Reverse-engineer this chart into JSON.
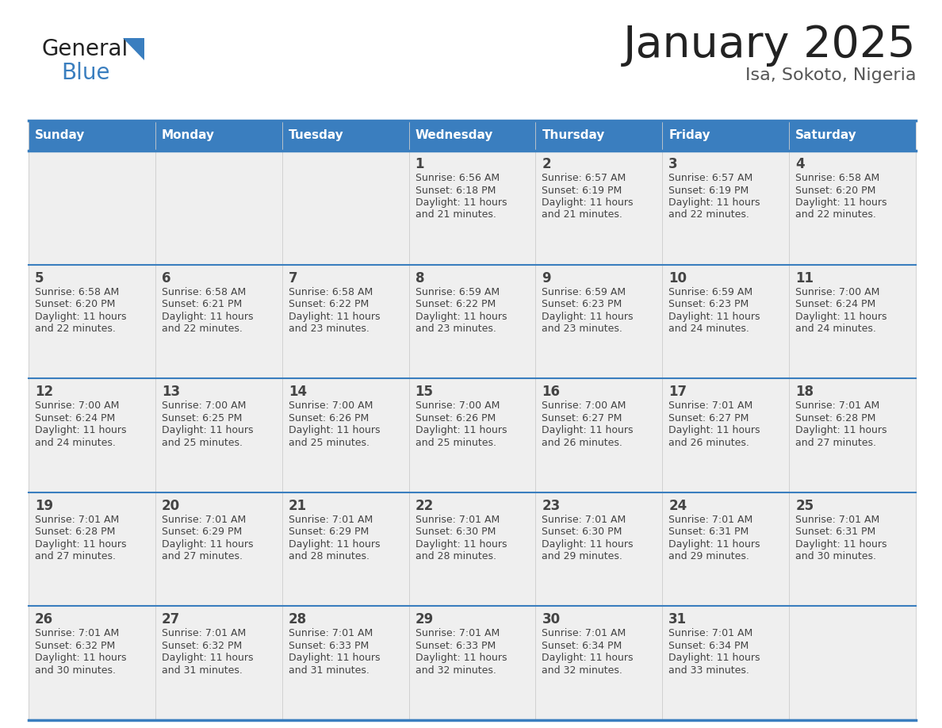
{
  "title": "January 2025",
  "subtitle": "Isa, Sokoto, Nigeria",
  "days_of_week": [
    "Sunday",
    "Monday",
    "Tuesday",
    "Wednesday",
    "Thursday",
    "Friday",
    "Saturday"
  ],
  "header_bg": "#3a7ebf",
  "header_text": "#ffffff",
  "cell_bg_odd": "#efefef",
  "cell_bg_even": "#ffffff",
  "border_color": "#3a7ebf",
  "divider_color": "#3a7ebf",
  "text_color": "#444444",
  "day_num_color": "#444444",
  "logo_general_color": "#222222",
  "logo_blue_color": "#3a7ebf",
  "logo_tri_color": "#3a7ebf",
  "title_color": "#222222",
  "subtitle_color": "#555555",
  "calendar_data": [
    [
      {
        "day": null,
        "info": null
      },
      {
        "day": null,
        "info": null
      },
      {
        "day": null,
        "info": null
      },
      {
        "day": 1,
        "info": {
          "sunrise": "6:56 AM",
          "sunset": "6:18 PM",
          "daylight_h": "11 hours",
          "daylight_m": "and 21 minutes."
        }
      },
      {
        "day": 2,
        "info": {
          "sunrise": "6:57 AM",
          "sunset": "6:19 PM",
          "daylight_h": "11 hours",
          "daylight_m": "and 21 minutes."
        }
      },
      {
        "day": 3,
        "info": {
          "sunrise": "6:57 AM",
          "sunset": "6:19 PM",
          "daylight_h": "11 hours",
          "daylight_m": "and 22 minutes."
        }
      },
      {
        "day": 4,
        "info": {
          "sunrise": "6:58 AM",
          "sunset": "6:20 PM",
          "daylight_h": "11 hours",
          "daylight_m": "and 22 minutes."
        }
      }
    ],
    [
      {
        "day": 5,
        "info": {
          "sunrise": "6:58 AM",
          "sunset": "6:20 PM",
          "daylight_h": "11 hours",
          "daylight_m": "and 22 minutes."
        }
      },
      {
        "day": 6,
        "info": {
          "sunrise": "6:58 AM",
          "sunset": "6:21 PM",
          "daylight_h": "11 hours",
          "daylight_m": "and 22 minutes."
        }
      },
      {
        "day": 7,
        "info": {
          "sunrise": "6:58 AM",
          "sunset": "6:22 PM",
          "daylight_h": "11 hours",
          "daylight_m": "and 23 minutes."
        }
      },
      {
        "day": 8,
        "info": {
          "sunrise": "6:59 AM",
          "sunset": "6:22 PM",
          "daylight_h": "11 hours",
          "daylight_m": "and 23 minutes."
        }
      },
      {
        "day": 9,
        "info": {
          "sunrise": "6:59 AM",
          "sunset": "6:23 PM",
          "daylight_h": "11 hours",
          "daylight_m": "and 23 minutes."
        }
      },
      {
        "day": 10,
        "info": {
          "sunrise": "6:59 AM",
          "sunset": "6:23 PM",
          "daylight_h": "11 hours",
          "daylight_m": "and 24 minutes."
        }
      },
      {
        "day": 11,
        "info": {
          "sunrise": "7:00 AM",
          "sunset": "6:24 PM",
          "daylight_h": "11 hours",
          "daylight_m": "and 24 minutes."
        }
      }
    ],
    [
      {
        "day": 12,
        "info": {
          "sunrise": "7:00 AM",
          "sunset": "6:24 PM",
          "daylight_h": "11 hours",
          "daylight_m": "and 24 minutes."
        }
      },
      {
        "day": 13,
        "info": {
          "sunrise": "7:00 AM",
          "sunset": "6:25 PM",
          "daylight_h": "11 hours",
          "daylight_m": "and 25 minutes."
        }
      },
      {
        "day": 14,
        "info": {
          "sunrise": "7:00 AM",
          "sunset": "6:26 PM",
          "daylight_h": "11 hours",
          "daylight_m": "and 25 minutes."
        }
      },
      {
        "day": 15,
        "info": {
          "sunrise": "7:00 AM",
          "sunset": "6:26 PM",
          "daylight_h": "11 hours",
          "daylight_m": "and 25 minutes."
        }
      },
      {
        "day": 16,
        "info": {
          "sunrise": "7:00 AM",
          "sunset": "6:27 PM",
          "daylight_h": "11 hours",
          "daylight_m": "and 26 minutes."
        }
      },
      {
        "day": 17,
        "info": {
          "sunrise": "7:01 AM",
          "sunset": "6:27 PM",
          "daylight_h": "11 hours",
          "daylight_m": "and 26 minutes."
        }
      },
      {
        "day": 18,
        "info": {
          "sunrise": "7:01 AM",
          "sunset": "6:28 PM",
          "daylight_h": "11 hours",
          "daylight_m": "and 27 minutes."
        }
      }
    ],
    [
      {
        "day": 19,
        "info": {
          "sunrise": "7:01 AM",
          "sunset": "6:28 PM",
          "daylight_h": "11 hours",
          "daylight_m": "and 27 minutes."
        }
      },
      {
        "day": 20,
        "info": {
          "sunrise": "7:01 AM",
          "sunset": "6:29 PM",
          "daylight_h": "11 hours",
          "daylight_m": "and 27 minutes."
        }
      },
      {
        "day": 21,
        "info": {
          "sunrise": "7:01 AM",
          "sunset": "6:29 PM",
          "daylight_h": "11 hours",
          "daylight_m": "and 28 minutes."
        }
      },
      {
        "day": 22,
        "info": {
          "sunrise": "7:01 AM",
          "sunset": "6:30 PM",
          "daylight_h": "11 hours",
          "daylight_m": "and 28 minutes."
        }
      },
      {
        "day": 23,
        "info": {
          "sunrise": "7:01 AM",
          "sunset": "6:30 PM",
          "daylight_h": "11 hours",
          "daylight_m": "and 29 minutes."
        }
      },
      {
        "day": 24,
        "info": {
          "sunrise": "7:01 AM",
          "sunset": "6:31 PM",
          "daylight_h": "11 hours",
          "daylight_m": "and 29 minutes."
        }
      },
      {
        "day": 25,
        "info": {
          "sunrise": "7:01 AM",
          "sunset": "6:31 PM",
          "daylight_h": "11 hours",
          "daylight_m": "and 30 minutes."
        }
      }
    ],
    [
      {
        "day": 26,
        "info": {
          "sunrise": "7:01 AM",
          "sunset": "6:32 PM",
          "daylight_h": "11 hours",
          "daylight_m": "and 30 minutes."
        }
      },
      {
        "day": 27,
        "info": {
          "sunrise": "7:01 AM",
          "sunset": "6:32 PM",
          "daylight_h": "11 hours",
          "daylight_m": "and 31 minutes."
        }
      },
      {
        "day": 28,
        "info": {
          "sunrise": "7:01 AM",
          "sunset": "6:33 PM",
          "daylight_h": "11 hours",
          "daylight_m": "and 31 minutes."
        }
      },
      {
        "day": 29,
        "info": {
          "sunrise": "7:01 AM",
          "sunset": "6:33 PM",
          "daylight_h": "11 hours",
          "daylight_m": "and 32 minutes."
        }
      },
      {
        "day": 30,
        "info": {
          "sunrise": "7:01 AM",
          "sunset": "6:34 PM",
          "daylight_h": "11 hours",
          "daylight_m": "and 32 minutes."
        }
      },
      {
        "day": 31,
        "info": {
          "sunrise": "7:01 AM",
          "sunset": "6:34 PM",
          "daylight_h": "11 hours",
          "daylight_m": "and 33 minutes."
        }
      },
      {
        "day": null,
        "info": null
      }
    ]
  ]
}
